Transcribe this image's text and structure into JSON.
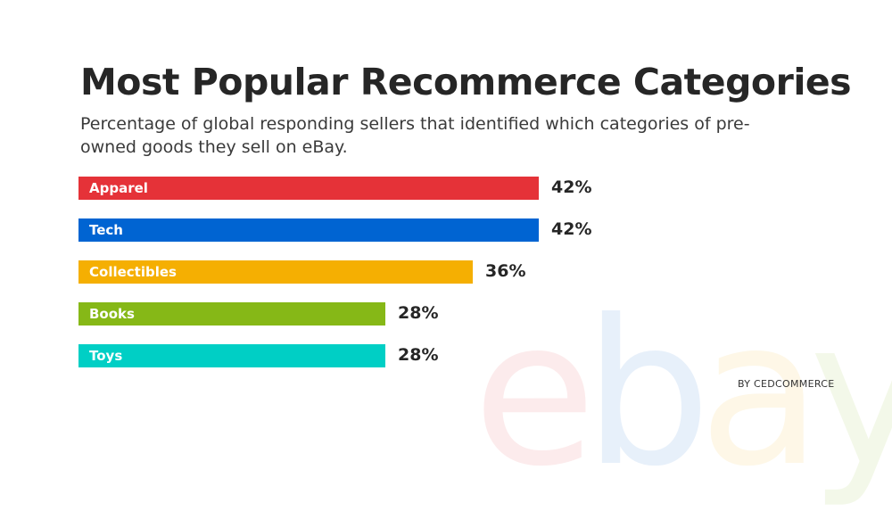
{
  "title": "Most Popular Recommerce Categories",
  "subtitle": "Percentage of global responding sellers that identified which categories of pre-owned goods they sell on eBay.",
  "credit": "BY CEDCOMMERCE",
  "watermark": {
    "letters": [
      "e",
      "b",
      "a",
      "y"
    ],
    "colors": [
      "#e53238",
      "#0064d2",
      "#f5af02",
      "#86b817"
    ]
  },
  "chart_data": {
    "type": "bar",
    "orientation": "horizontal",
    "title": "Most Popular Recommerce Categories",
    "subtitle": "Percentage of global responding sellers that identified which categories of pre-owned goods they sell on eBay.",
    "categories": [
      "Apparel",
      "Tech",
      "Collectibles",
      "Books",
      "Toys"
    ],
    "values": [
      42,
      42,
      36,
      28,
      28
    ],
    "value_labels": [
      "42%",
      "42%",
      "36%",
      "28%",
      "28%"
    ],
    "colors": [
      "#e53238",
      "#0064d2",
      "#f5af02",
      "#86b817",
      "#00cfc5"
    ],
    "unit": "%",
    "xlim": [
      0,
      42
    ],
    "grid": false
  }
}
